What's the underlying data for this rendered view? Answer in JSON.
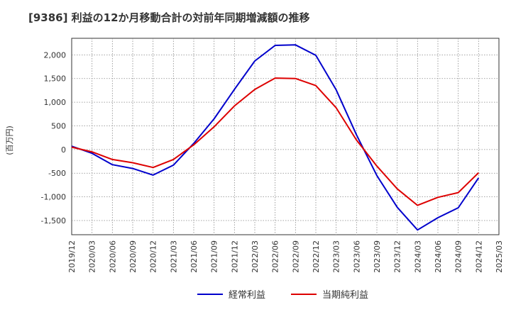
{
  "chart_data": {
    "type": "line",
    "title": "[9386]  利益の12か月移動合計の対前年同期増減額の推移",
    "ylabel": "(百万円)",
    "xlabel": "",
    "ylim": [
      -1800,
      2350
    ],
    "yticks": [
      -1500,
      -1000,
      -500,
      0,
      500,
      1000,
      1500,
      2000
    ],
    "ytick_labels": [
      "-1,500",
      "-1,000",
      "-500",
      "0",
      "500",
      "1,000",
      "1,500",
      "2,000"
    ],
    "x": [
      "2019/12",
      "2020/03",
      "2020/06",
      "2020/09",
      "2020/12",
      "2021/03",
      "2021/06",
      "2021/09",
      "2021/12",
      "2022/03",
      "2022/06",
      "2022/09",
      "2022/12",
      "2023/03",
      "2023/06",
      "2023/09",
      "2023/12",
      "2024/03",
      "2024/06",
      "2024/09",
      "2024/12",
      "2025/03"
    ],
    "grid": true,
    "legend_position": "bottom",
    "series": [
      {
        "name": "経常利益",
        "color": "#0000cc",
        "values": [
          70,
          -80,
          -320,
          -400,
          -540,
          -330,
          130,
          650,
          1270,
          1870,
          2200,
          2210,
          1990,
          1260,
          310,
          -550,
          -1220,
          -1700,
          -1440,
          -1230,
          -600,
          null
        ]
      },
      {
        "name": "当期純利益",
        "color": "#dd0000",
        "values": [
          50,
          -50,
          -210,
          -280,
          -380,
          -210,
          100,
          480,
          920,
          1270,
          1510,
          1500,
          1350,
          880,
          200,
          -350,
          -830,
          -1180,
          -1010,
          -910,
          -490,
          null
        ]
      }
    ]
  }
}
